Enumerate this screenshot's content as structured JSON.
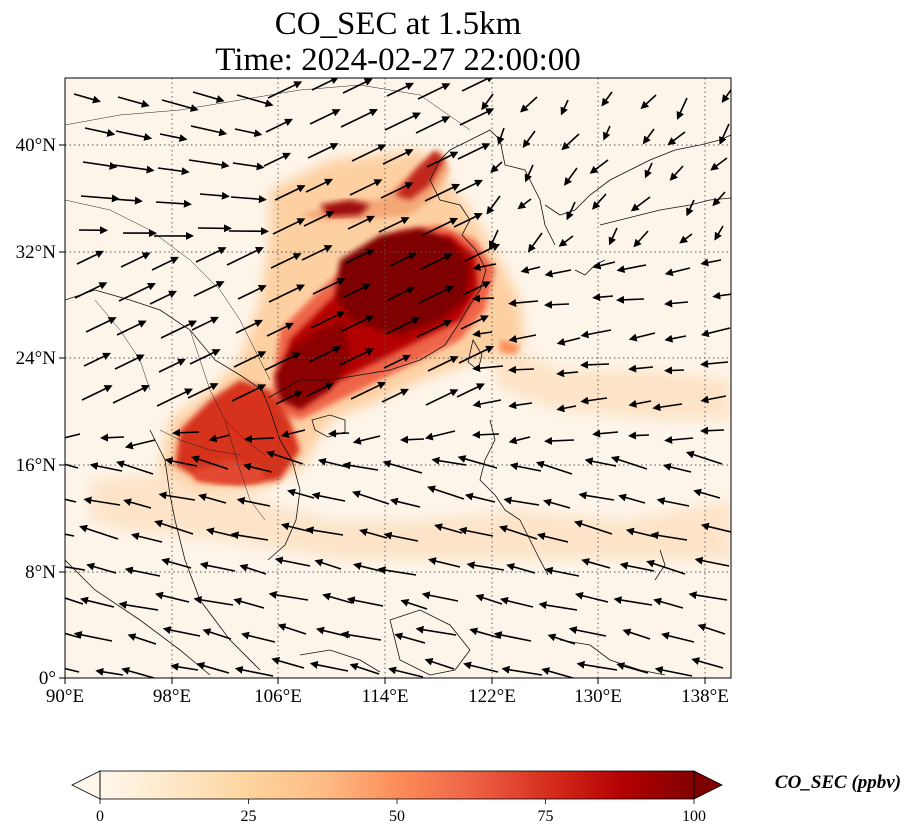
{
  "title": {
    "line1": "CO_SEC at 1.5km",
    "line2": "Time: 2024-02-27 22:00:00"
  },
  "map": {
    "lon_ticks": [
      "90°E",
      "98°E",
      "106°E",
      "114°E",
      "122°E",
      "130°E",
      "138°E"
    ],
    "lat_ticks": [
      "40°N",
      "32°N",
      "24°N",
      "16°N",
      "8°N",
      "0°"
    ],
    "lon_range": [
      90,
      140
    ],
    "lat_range": [
      0,
      45
    ],
    "gridlines": "dotted"
  },
  "colorbar": {
    "label": "CO_SEC (ppbv)",
    "ticks": [
      "0",
      "25",
      "50",
      "75",
      "100"
    ],
    "range": [
      0,
      100
    ],
    "colormap": "OrRd",
    "extend": "both"
  },
  "colors": {
    "low": "#fff7ec",
    "mid": "#fc8d59",
    "high": "#7f0000"
  }
}
